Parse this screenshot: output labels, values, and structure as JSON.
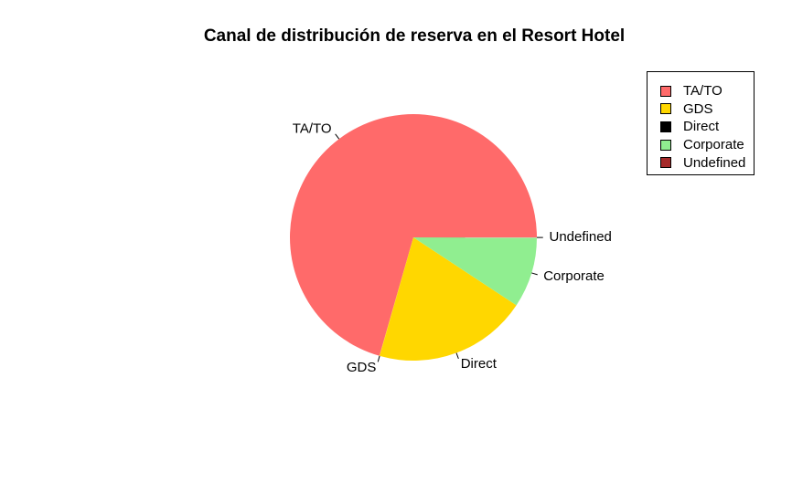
{
  "chart_data": {
    "type": "pie",
    "title": "Canal de distribución de reserva en el Resort Hotel",
    "categories": [
      "TA/TO",
      "GDS",
      "Direct",
      "Corporate",
      "Undefined"
    ],
    "values": [
      70.57,
      0.04,
      20.1,
      9.27,
      0.02
    ],
    "colors": [
      "#FF6A6A",
      "#FFD700",
      "#FFD700",
      "#90EE90",
      "#A52A2A"
    ],
    "legend": {
      "position": "top-right",
      "entries": [
        {
          "label": "TA/TO",
          "color": "#FF6A6A"
        },
        {
          "label": "GDS",
          "color": "#FFD700"
        },
        {
          "label": "Direct",
          "color": "#000000"
        },
        {
          "label": "Corporate",
          "color": "#90EE90"
        },
        {
          "label": "Undefined",
          "color": "#A52A2A"
        }
      ]
    }
  }
}
